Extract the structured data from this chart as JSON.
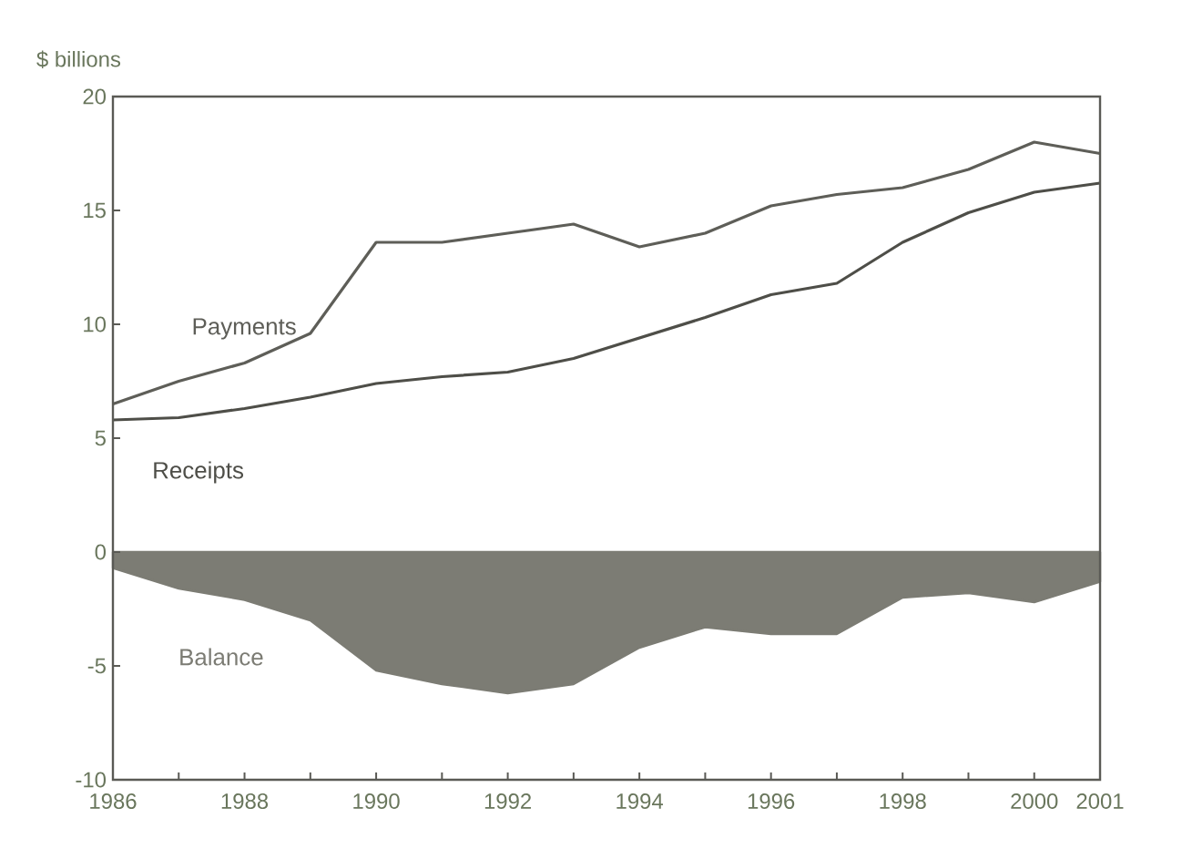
{
  "chart_data": {
    "type": "line",
    "ylabel": "$ billions",
    "x": [
      1986,
      1987,
      1988,
      1989,
      1990,
      1991,
      1992,
      1993,
      1994,
      1995,
      1996,
      1997,
      1998,
      1999,
      2000,
      2001
    ],
    "series": [
      {
        "name": "Payments",
        "color": "#5e5e58",
        "values": [
          6.5,
          7.5,
          8.3,
          9.6,
          13.6,
          13.6,
          14.0,
          14.4,
          13.4,
          14.0,
          15.2,
          15.7,
          16.0,
          16.8,
          18.0,
          17.5
        ]
      },
      {
        "name": "Receipts",
        "color": "#4e4e48",
        "values": [
          5.8,
          5.9,
          6.3,
          6.8,
          7.4,
          7.7,
          7.9,
          8.5,
          9.4,
          10.3,
          11.3,
          11.8,
          13.6,
          14.9,
          15.8,
          16.2
        ]
      },
      {
        "name": "Balance",
        "type": "area",
        "color": "#7c7c74",
        "values": [
          -0.7,
          -1.6,
          -2.1,
          -3.0,
          -5.2,
          -5.8,
          -6.2,
          -5.8,
          -4.2,
          -3.3,
          -3.6,
          -3.6,
          -2.0,
          -1.8,
          -2.2,
          -1.3
        ]
      }
    ],
    "xlim": [
      1986,
      2001
    ],
    "xticks": [
      1986,
      {
        "value": 1987,
        "label": null
      },
      1988,
      {
        "value": 1989,
        "label": null
      },
      1990,
      {
        "value": 1991,
        "label": null
      },
      1992,
      {
        "value": 1993,
        "label": null
      },
      1994,
      {
        "value": 1995,
        "label": null
      },
      1996,
      {
        "value": 1997,
        "label": null
      },
      1998,
      {
        "value": 1999,
        "label": null
      },
      2000,
      2001
    ],
    "ylim": [
      -10,
      20
    ],
    "yticks": [
      -10,
      -5,
      0,
      5,
      10,
      15,
      20
    ],
    "grid": false,
    "marker": "none",
    "line_style": "solid"
  }
}
